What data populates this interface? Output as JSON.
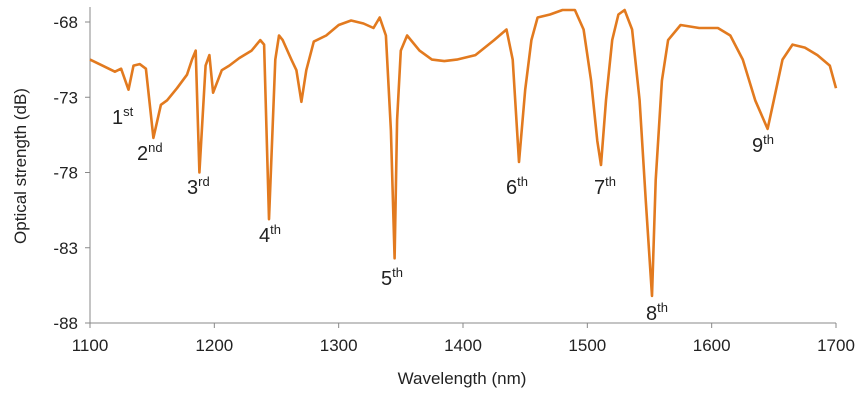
{
  "chart_data": {
    "type": "line",
    "x_label": "Wavelength (nm)",
    "y_label": "Optical strength (dB)",
    "xlim": [
      1100,
      1700
    ],
    "xticks": [
      1100,
      1200,
      1300,
      1400,
      1500,
      1600,
      1700
    ],
    "ylim": [
      -88,
      -67
    ],
    "yticks": [
      -88,
      -83,
      -78,
      -73,
      -68
    ],
    "grid": false,
    "series": [
      {
        "color": "#e27a1f",
        "x": [
          1100,
          1110,
          1120,
          1125,
          1131,
          1135,
          1140,
          1145,
          1151,
          1157,
          1162,
          1170,
          1178,
          1182,
          1185,
          1188,
          1193,
          1196,
          1199,
          1206,
          1212,
          1220,
          1230,
          1237,
          1240,
          1244,
          1249,
          1252,
          1255,
          1262,
          1266,
          1270,
          1274,
          1280,
          1290,
          1300,
          1310,
          1320,
          1328,
          1333,
          1338,
          1342,
          1345,
          1347,
          1350,
          1355,
          1365,
          1375,
          1385,
          1395,
          1410,
          1425,
          1435,
          1440,
          1445,
          1450,
          1455,
          1460,
          1470,
          1480,
          1490,
          1497,
          1503,
          1508,
          1511,
          1515,
          1520,
          1525,
          1530,
          1536,
          1542,
          1547,
          1552,
          1555,
          1560,
          1565,
          1575,
          1590,
          1605,
          1615,
          1625,
          1635,
          1645,
          1650,
          1657,
          1665,
          1675,
          1685,
          1695,
          1700
        ],
        "values": [
          -70.5,
          -70.9,
          -71.3,
          -71.1,
          -72.5,
          -70.9,
          -70.8,
          -71.1,
          -75.7,
          -73.5,
          -73.2,
          -72.4,
          -71.5,
          -70.5,
          -69.9,
          -78,
          -70.9,
          -70.2,
          -72.7,
          -71.2,
          -70.9,
          -70.4,
          -69.9,
          -69.2,
          -69.5,
          -81.1,
          -70.5,
          -68.9,
          -69.2,
          -70.5,
          -71.2,
          -73.3,
          -71.2,
          -69.3,
          -68.9,
          -68.2,
          -67.9,
          -68.1,
          -68.4,
          -67.7,
          -68.9,
          -75.2,
          -83.7,
          -74.5,
          -69.9,
          -68.9,
          -69.9,
          -70.5,
          -70.6,
          -70.5,
          -70.2,
          -69.2,
          -68.5,
          -70.5,
          -77.3,
          -72.5,
          -69.2,
          -67.7,
          -67.5,
          -67.2,
          -67.2,
          -68.5,
          -71.9,
          -75.9,
          -77.5,
          -73.2,
          -69.2,
          -67.5,
          -67.2,
          -68.5,
          -73.2,
          -79.9,
          -86.2,
          -78.5,
          -71.9,
          -69.2,
          -68.2,
          -68.4,
          -68.4,
          -68.9,
          -70.5,
          -73.2,
          -75.1,
          -73.2,
          -70.5,
          -69.5,
          -69.7,
          -70.2,
          -70.9,
          -72.4
        ]
      }
    ],
    "annotations": [
      {
        "text": "1",
        "sup": "st"
      },
      {
        "text": "2",
        "sup": "nd"
      },
      {
        "text": "3",
        "sup": "rd"
      },
      {
        "text": "4",
        "sup": "th"
      },
      {
        "text": "5",
        "sup": "th"
      },
      {
        "text": "6",
        "sup": "th"
      },
      {
        "text": "7",
        "sup": "th"
      },
      {
        "text": "8",
        "sup": "th"
      },
      {
        "text": "9",
        "sup": "th"
      }
    ]
  }
}
